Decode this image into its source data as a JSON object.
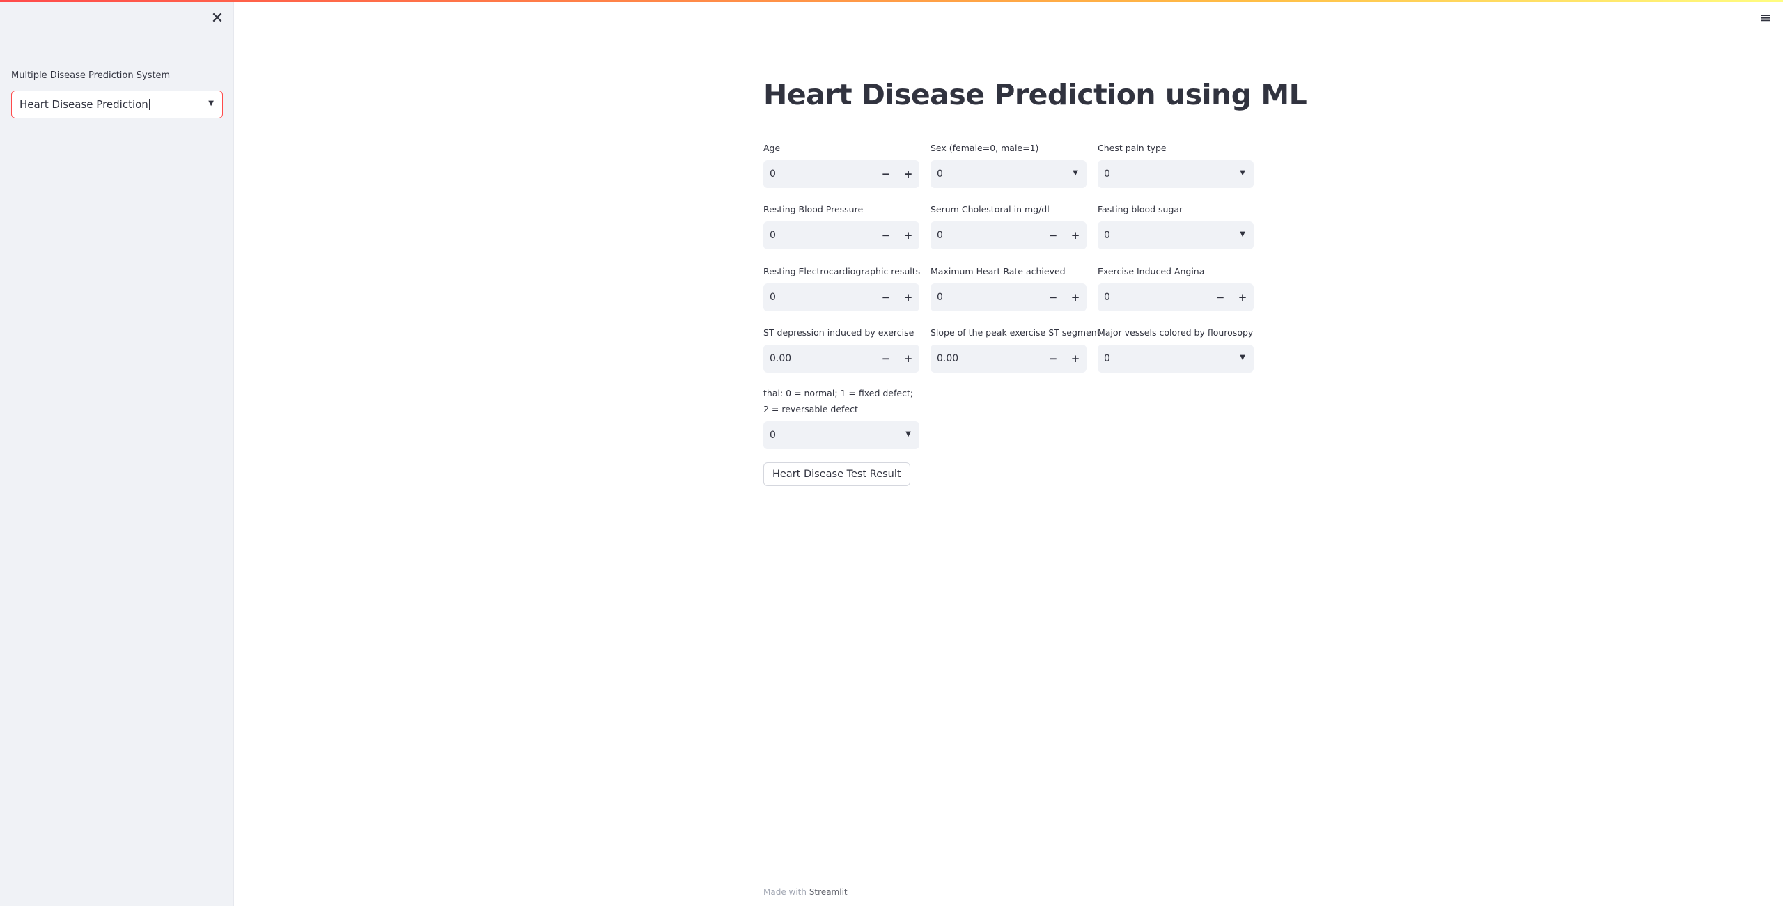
{
  "sidebar": {
    "close_icon": "close-icon",
    "label": "Multiple Disease Prediction System",
    "selected_option": "Heart Disease Prediction"
  },
  "header": {
    "menu_icon": "hamburger-icon"
  },
  "main": {
    "title": "Heart Disease Prediction using ML",
    "fields": {
      "age": {
        "label": "Age",
        "value": "0"
      },
      "sex": {
        "label": "Sex (female=0, male=1)",
        "value": "0"
      },
      "cp": {
        "label": "Chest pain type",
        "value": "0"
      },
      "trestbps": {
        "label": "Resting Blood Pressure",
        "value": "0"
      },
      "chol": {
        "label": "Serum Cholestoral in mg/dl",
        "value": "0"
      },
      "fbs": {
        "label": "Fasting blood sugar",
        "value": "0"
      },
      "restecg": {
        "label": "Resting Electrocardiographic results",
        "value": "0"
      },
      "thalach": {
        "label": "Maximum Heart Rate achieved",
        "value": "0"
      },
      "exang": {
        "label": "Exercise Induced Angina",
        "value": "0"
      },
      "oldpeak": {
        "label": "ST depression induced by exercise",
        "value": "0.00"
      },
      "slope": {
        "label": "Slope of the peak exercise ST segment",
        "value": "0.00"
      },
      "ca": {
        "label": "Major vessels colored by flourosopy",
        "value": "0"
      },
      "thal": {
        "label": "thal: 0 = normal; 1 = fixed defect; 2 = reversable defect",
        "value": "0"
      }
    },
    "button_label": "Heart Disease Test Result"
  },
  "footer": {
    "prefix": "Made with",
    "brand": "Streamlit"
  }
}
